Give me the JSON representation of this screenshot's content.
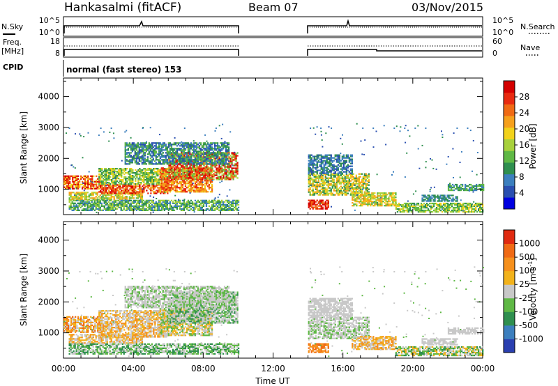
{
  "header": {
    "station": "Hankasalmi (fitACF)",
    "beam": "Beam 07",
    "date": "03/Nov/2015"
  },
  "top_panels": {
    "nsky_label": "N.Sky",
    "nsearch_label": "N.Search",
    "nsky_ticks": [
      "10^5",
      "10^0"
    ],
    "nsearch_ticks": [
      "10^5",
      "10^0"
    ],
    "freq_label_1": "Freq.",
    "freq_label_2": "[MHz]",
    "freq_ticks": [
      "18",
      "8"
    ],
    "nave_label": "Nave",
    "nave_ticks": [
      "60",
      "0"
    ],
    "cpid_label": "CPID",
    "cpid_text": "normal (fast stereo) 153"
  },
  "chart_data": [
    {
      "type": "heatmap",
      "name": "power-panel",
      "xlabel": "Time UT",
      "ylabel": "Slant Range [km]",
      "x_ticks": [
        "00:00",
        "04:00",
        "08:00",
        "12:00",
        "16:00",
        "20:00",
        "00:00"
      ],
      "y_ticks": [
        "1000",
        "2000",
        "3000",
        "4000"
      ],
      "xlim_hours": [
        0,
        24
      ],
      "ylim_km": [
        180,
        4600
      ],
      "colorbar": {
        "label": "Power [dB]",
        "ticks": [
          "28",
          "24",
          "20",
          "16",
          "12",
          "8",
          "4"
        ],
        "colors": [
          "#0000e0",
          "#2a4fb0",
          "#3c7fbe",
          "#2f8f4f",
          "#5fb845",
          "#a8d13c",
          "#f2d21b",
          "#f6a01c",
          "#f06a14",
          "#e82a10",
          "#d40000"
        ]
      },
      "data_gap_hours": [
        10,
        14
      ],
      "echo_regions": [
        {
          "t0": 0.0,
          "t1": 10.0,
          "r0": 600,
          "r1": 2400,
          "level": "high"
        },
        {
          "t0": 14.0,
          "t1": 17.5,
          "r0": 350,
          "r1": 1800,
          "level": "high"
        },
        {
          "t0": 17.5,
          "t1": 24.0,
          "r0": 300,
          "r1": 1200,
          "level": "low"
        }
      ]
    },
    {
      "type": "heatmap",
      "name": "velocity-panel",
      "xlabel": "Time UT",
      "ylabel": "Slant Range [km]",
      "x_ticks": [
        "00:00",
        "04:00",
        "08:00",
        "12:00",
        "16:00",
        "20:00",
        "00:00"
      ],
      "y_ticks": [
        "1000",
        "2000",
        "3000",
        "4000"
      ],
      "xlim_hours": [
        0,
        24
      ],
      "ylim_km": [
        180,
        4600
      ],
      "colorbar": {
        "label": "Velocity [m s",
        "label_sup": "-1",
        "label_end": "]",
        "ticks": [
          "1000",
          "500",
          "100",
          "25",
          "-25",
          "-100",
          "-500",
          "-1000"
        ],
        "colors": [
          "#2a3fb0",
          "#3c7fbe",
          "#2f8f4f",
          "#5fb845",
          "#c8c8c8",
          "#f2b21b",
          "#f6901c",
          "#f06a14",
          "#e02a10"
        ]
      },
      "data_gap_hours": [
        10,
        14
      ]
    }
  ]
}
